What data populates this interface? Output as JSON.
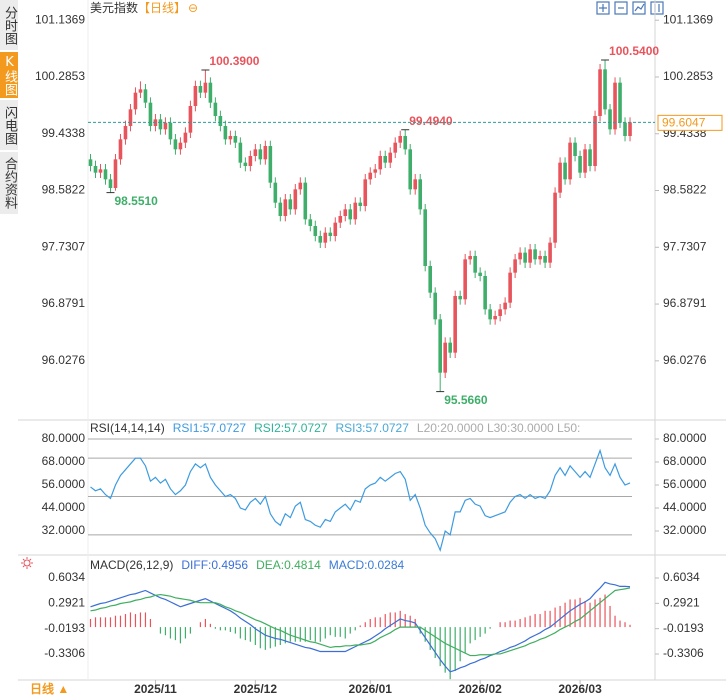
{
  "sidebar": [
    "分时图",
    "K线图",
    "闪电图",
    "合约资料"
  ],
  "footer": {
    "period": "日线 ▲"
  },
  "chart_data": [
    {
      "type": "candlestick",
      "title": "美元指数",
      "subtitle": "【日线】",
      "title_icon": "⊖",
      "up_color": "#e8545c",
      "down_color": "#3fae6a",
      "grid": false,
      "ylim": [
        95.17,
        101.32
      ],
      "yticks": [
        101.1369,
        100.2853,
        99.4338,
        98.5822,
        97.7307,
        96.8791,
        96.0276
      ],
      "xlim": [
        -0.5,
        113
      ],
      "xticks": [
        {
          "value": 13,
          "label": "2025/11"
        },
        {
          "value": 33,
          "label": "2025/12"
        },
        {
          "value": 56,
          "label": "2026/01"
        },
        {
          "value": 78,
          "label": "2026/02"
        },
        {
          "value": 98,
          "label": "2026/03"
        }
      ],
      "open": [
        99.05,
        98.95,
        98.85,
        98.9,
        98.75,
        98.62,
        99.05,
        99.35,
        99.55,
        99.8,
        100.05,
        100.1,
        99.9,
        99.55,
        99.65,
        99.5,
        99.6,
        99.35,
        99.2,
        99.3,
        99.45,
        99.85,
        100.15,
        100.05,
        100.2,
        99.9,
        99.7,
        99.55,
        99.35,
        99.4,
        99.3,
        99,
        98.95,
        99.1,
        99.2,
        99.05,
        99.25,
        98.7,
        98.4,
        98.2,
        98.45,
        98.3,
        98.6,
        98.7,
        98.15,
        98.05,
        97.9,
        97.8,
        97.95,
        97.9,
        98.1,
        98.2,
        98.3,
        98.15,
        98.4,
        98.35,
        98.75,
        98.85,
        98.9,
        99.1,
        99,
        99.15,
        99.3,
        99.4,
        99.2,
        98.6,
        98.75,
        98.3,
        97.45,
        97.05,
        96.65,
        95.85,
        96.3,
        96.15,
        97,
        96.95,
        97.55,
        97.6,
        97.35,
        97.3,
        96.8,
        96.65,
        96.7,
        96.8,
        96.9,
        97.35,
        97.55,
        97.65,
        97.5,
        97.7,
        97.55,
        97.6,
        97.5,
        97.8,
        98.55,
        99,
        98.75,
        99.3,
        99.1,
        98.85,
        99.2,
        98.95,
        99.7,
        100.4,
        99.8,
        99.5,
        100.2,
        99.6,
        99.4
      ],
      "high": [
        99.13,
        99.03,
        98.98,
        98.98,
        98.83,
        99.13,
        99.43,
        99.63,
        99.88,
        100.13,
        100.22,
        100.18,
        99.98,
        99.73,
        99.73,
        99.68,
        99.68,
        99.43,
        99.38,
        99.53,
        99.93,
        100.23,
        100.23,
        100.39,
        100.28,
        99.98,
        99.78,
        99.63,
        99.48,
        99.48,
        99.38,
        99.08,
        99.18,
        99.28,
        99.28,
        99.33,
        99.33,
        98.78,
        98.48,
        98.53,
        98.53,
        98.68,
        98.78,
        98.78,
        98.23,
        98.13,
        97.98,
        98.03,
        98.03,
        98.18,
        98.28,
        98.38,
        98.38,
        98.48,
        98.48,
        98.83,
        98.93,
        98.98,
        99.18,
        99.18,
        99.23,
        99.38,
        99.48,
        99.494,
        99.28,
        98.83,
        98.83,
        98.38,
        97.53,
        97.13,
        96.73,
        96.38,
        96.38,
        97.08,
        97.08,
        97.63,
        97.68,
        97.68,
        97.43,
        97.38,
        96.88,
        96.78,
        96.88,
        96.98,
        97.43,
        97.63,
        97.73,
        97.73,
        97.78,
        97.78,
        97.68,
        97.68,
        97.88,
        98.63,
        99.08,
        99.08,
        99.38,
        99.38,
        99.18,
        99.28,
        99.28,
        99.78,
        100.48,
        100.54,
        99.88,
        100.28,
        100.28,
        99.68,
        99.68
      ],
      "low": [
        98.87,
        98.77,
        98.77,
        98.67,
        98.551,
        98.58,
        98.97,
        99.27,
        99.47,
        99.72,
        99.97,
        99.82,
        99.47,
        99.47,
        99.42,
        99.42,
        99.27,
        99.12,
        99.12,
        99.22,
        99.37,
        99.77,
        99.97,
        99.97,
        99.82,
        99.62,
        99.47,
        99.27,
        99.27,
        99.22,
        98.92,
        98.87,
        98.87,
        99.02,
        98.97,
        98.97,
        98.62,
        98.32,
        98.12,
        98.12,
        98.22,
        98.22,
        98.52,
        98.07,
        97.97,
        97.82,
        97.72,
        97.72,
        97.82,
        97.82,
        98.02,
        98.12,
        98.07,
        98.07,
        98.27,
        98.27,
        98.67,
        98.77,
        98.82,
        98.92,
        98.92,
        99.07,
        99.22,
        99.12,
        98.52,
        98.52,
        98.22,
        97.37,
        96.97,
        96.57,
        95.566,
        95.77,
        96.07,
        96.07,
        96.87,
        96.87,
        97.47,
        97.27,
        97.22,
        96.72,
        96.57,
        96.57,
        96.62,
        96.72,
        96.82,
        97.27,
        97.47,
        97.42,
        97.42,
        97.47,
        97.47,
        97.42,
        97.42,
        97.72,
        98.47,
        98.67,
        98.67,
        99.02,
        98.77,
        98.77,
        98.87,
        98.87,
        99.62,
        99.72,
        99.42,
        99.42,
        99.52,
        99.32,
        99.32
      ],
      "close": [
        98.95,
        98.85,
        98.9,
        98.75,
        98.62,
        99.05,
        99.35,
        99.55,
        99.8,
        100.05,
        100.1,
        99.9,
        99.55,
        99.65,
        99.5,
        99.6,
        99.35,
        99.2,
        99.3,
        99.45,
        99.85,
        100.15,
        100.05,
        100.2,
        99.9,
        99.7,
        99.55,
        99.35,
        99.4,
        99.3,
        99,
        98.95,
        99.1,
        99.2,
        99.05,
        99.25,
        98.7,
        98.4,
        98.2,
        98.45,
        98.3,
        98.6,
        98.7,
        98.15,
        98.05,
        97.9,
        97.8,
        97.95,
        97.9,
        98.1,
        98.2,
        98.3,
        98.15,
        98.4,
        98.35,
        98.75,
        98.85,
        98.9,
        99.1,
        99,
        99.15,
        99.3,
        99.4,
        99.2,
        98.6,
        98.75,
        98.3,
        97.45,
        97.05,
        96.65,
        95.85,
        96.3,
        96.15,
        97,
        96.95,
        97.55,
        97.6,
        97.35,
        97.3,
        96.8,
        96.65,
        96.7,
        96.8,
        96.9,
        97.35,
        97.55,
        97.65,
        97.5,
        97.7,
        97.55,
        97.6,
        97.5,
        97.8,
        98.55,
        99,
        98.75,
        99.3,
        99.1,
        98.85,
        99.2,
        98.95,
        99.7,
        100.4,
        99.8,
        99.5,
        100.2,
        99.6,
        99.4,
        99.6047
      ],
      "last_price_color": "#f39a1e",
      "annotations": [
        {
          "candle": 23,
          "field": "high",
          "label": "100.3900"
        },
        {
          "candle": 4,
          "field": "low",
          "label": "98.5510"
        },
        {
          "candle": 63,
          "field": "high",
          "label": "99.4940"
        },
        {
          "candle": 70,
          "field": "low",
          "label": "95.5660"
        },
        {
          "candle": 103,
          "field": "high",
          "label": "100.5400"
        }
      ]
    },
    {
      "type": "line",
      "title": "RSI(14,14,14)",
      "ylim": [
        22.1,
        87.3
      ],
      "yticks": [
        {
          "value": 80,
          "label": "80.0000"
        },
        {
          "value": 68,
          "label": "68.0000"
        },
        {
          "value": 56,
          "label": "56.0000"
        },
        {
          "value": 44,
          "label": "44.0000"
        },
        {
          "value": 32,
          "label": "32.0000"
        }
      ],
      "ref_lines": [
        80,
        70,
        50,
        30
      ],
      "ref_legend": "L20:20.0000  L30:30.0000  L50:",
      "series": [
        {
          "name": "RSI1:57.0727",
          "color": "#3d9be0",
          "values": [
            55,
            53,
            54,
            51,
            49,
            56,
            61,
            64,
            67,
            70,
            70,
            66,
            58,
            60,
            57,
            59,
            54,
            51,
            53,
            56,
            63,
            67,
            65,
            67,
            60,
            56,
            53,
            50,
            51,
            49,
            44,
            43,
            47,
            49,
            46,
            50,
            41,
            37,
            35,
            41,
            39,
            45,
            47,
            38,
            37,
            35,
            34,
            38,
            37,
            42,
            44,
            46,
            43,
            48,
            47,
            54,
            56,
            57,
            60,
            58,
            60,
            62,
            63,
            59,
            48,
            51,
            44,
            35,
            31,
            28,
            22,
            32,
            30,
            42,
            42,
            48,
            49,
            46,
            45,
            40,
            39,
            40,
            41,
            42,
            47,
            50,
            51,
            49,
            51,
            49,
            50,
            49,
            53,
            61,
            65,
            61,
            66,
            63,
            60,
            63,
            60,
            67,
            74,
            65,
            61,
            67,
            60,
            56,
            57.0727
          ]
        }
      ],
      "legend_extra": [
        {
          "name": "RSI2:57.0727",
          "color": "#2eb39a"
        },
        {
          "name": "RSI3:57.0727",
          "color": "#4aa8d8"
        }
      ]
    },
    {
      "type": "macd",
      "title": "MACD(26,12,9)",
      "ylim": [
        -0.6993,
        0.8246
      ],
      "yticks": [
        0.6034,
        0.2921,
        -0.0193,
        -0.3306
      ],
      "series": [
        {
          "name": "DIFF:0.4956",
          "color": "#3b6fd6",
          "values": [
            0.25,
            0.27,
            0.29,
            0.3,
            0.32,
            0.34,
            0.36,
            0.38,
            0.4,
            0.41,
            0.43,
            0.45,
            0.42,
            0.39,
            0.36,
            0.34,
            0.31,
            0.28,
            0.25,
            0.27,
            0.29,
            0.31,
            0.33,
            0.35,
            0.32,
            0.29,
            0.26,
            0.23,
            0.2,
            0.16,
            0.11,
            0.07,
            0.03,
            -0.02,
            -0.06,
            -0.1,
            -0.12,
            -0.14,
            -0.15,
            -0.17,
            -0.19,
            -0.21,
            -0.23,
            -0.25,
            -0.26,
            -0.28,
            -0.3,
            -0.3,
            -0.3,
            -0.3,
            -0.3,
            -0.3,
            -0.27,
            -0.24,
            -0.21,
            -0.18,
            -0.15,
            -0.11,
            -0.07,
            -0.02,
            0.02,
            0.06,
            0.1,
            0.08,
            0.07,
            0.05,
            -0.04,
            -0.13,
            -0.22,
            -0.31,
            -0.4,
            -0.48,
            -0.55,
            -0.53,
            -0.5,
            -0.48,
            -0.45,
            -0.43,
            -0.4,
            -0.38,
            -0.35,
            -0.33,
            -0.3,
            -0.28,
            -0.25,
            -0.23,
            -0.2,
            -0.17,
            -0.13,
            -0.1,
            -0.07,
            -0.03,
            0,
            0.05,
            0.1,
            0.15,
            0.2,
            0.24,
            0.28,
            0.31,
            0.35,
            0.42,
            0.48,
            0.55,
            0.53,
            0.52,
            0.5,
            0.5,
            0.4956
          ]
        },
        {
          "name": "DEA:0.4814",
          "color": "#3fae5f",
          "values": [
            0.2,
            0.21,
            0.23,
            0.24,
            0.26,
            0.27,
            0.29,
            0.3,
            0.31,
            0.33,
            0.34,
            0.36,
            0.37,
            0.39,
            0.4,
            0.39,
            0.38,
            0.36,
            0.35,
            0.34,
            0.33,
            0.31,
            0.3,
            0.3,
            0.3,
            0.3,
            0.28,
            0.25,
            0.23,
            0.2,
            0.18,
            0.15,
            0.12,
            0.09,
            0.07,
            0.04,
            0.01,
            -0.02,
            -0.04,
            -0.07,
            -0.1,
            -0.12,
            -0.14,
            -0.16,
            -0.18,
            -0.19,
            -0.21,
            -0.23,
            -0.25,
            -0.24,
            -0.24,
            -0.23,
            -0.23,
            -0.22,
            -0.22,
            -0.21,
            -0.2,
            -0.17,
            -0.13,
            -0.1,
            -0.07,
            -0.03,
            0,
            0,
            0,
            0,
            0,
            -0.04,
            -0.08,
            -0.12,
            -0.16,
            -0.2,
            -0.23,
            -0.26,
            -0.29,
            -0.32,
            -0.35,
            -0.35,
            -0.34,
            -0.34,
            -0.34,
            -0.33,
            -0.33,
            -0.31,
            -0.29,
            -0.27,
            -0.25,
            -0.23,
            -0.2,
            -0.18,
            -0.15,
            -0.13,
            -0.1,
            -0.07,
            -0.03,
            0,
            0.03,
            0.07,
            0.1,
            0.15,
            0.2,
            0.25,
            0.3,
            0.35,
            0.4,
            0.45,
            0.46,
            0.47,
            0.4814
          ]
        }
      ],
      "histogram": {
        "name": "MACD:0.0284",
        "color": "#3a7bd5",
        "up_color": "#e8545c",
        "down_color": "#3fae6a",
        "values": [
          0.1,
          0.12,
          0.12,
          0.12,
          0.12,
          0.14,
          0.14,
          0.16,
          0.18,
          0.16,
          0.18,
          0.18,
          0.1,
          0,
          -0.08,
          -0.1,
          -0.14,
          -0.16,
          -0.2,
          -0.14,
          -0.08,
          0,
          0.06,
          0.1,
          0.04,
          -0.02,
          -0.04,
          -0.04,
          -0.06,
          -0.08,
          -0.14,
          -0.16,
          -0.18,
          -0.22,
          -0.26,
          -0.28,
          -0.26,
          -0.24,
          -0.22,
          -0.2,
          -0.18,
          -0.18,
          -0.18,
          -0.18,
          -0.16,
          -0.18,
          -0.18,
          -0.14,
          -0.1,
          -0.12,
          -0.12,
          -0.14,
          -0.08,
          -0.04,
          0.02,
          0.06,
          0.1,
          0.12,
          0.12,
          0.16,
          0.18,
          0.18,
          0.2,
          0.16,
          0.14,
          0.1,
          -0.08,
          -0.18,
          -0.28,
          -0.38,
          -0.48,
          -0.56,
          -0.64,
          -0.54,
          -0.42,
          -0.32,
          -0.2,
          -0.16,
          -0.12,
          -0.08,
          -0.02,
          0,
          0.06,
          0.06,
          0.08,
          0.08,
          0.1,
          0.12,
          0.14,
          0.16,
          0.16,
          0.2,
          0.2,
          0.24,
          0.26,
          0.3,
          0.34,
          0.34,
          0.36,
          0.32,
          0.3,
          0.34,
          0.36,
          0.4,
          0.26,
          0.14,
          0.08,
          0.06,
          0.0284
        ]
      }
    }
  ]
}
